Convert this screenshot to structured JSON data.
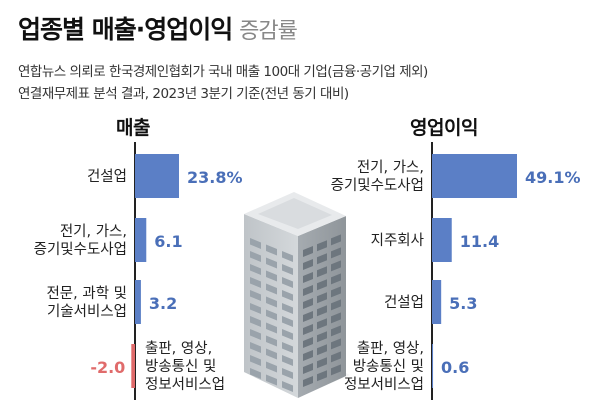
{
  "header": {
    "title_bold": "업종별 매출·영업이익",
    "title_light": "증감률",
    "subtitle_line1": "연합뉴스 의뢰로 한국경제인협회가 국내 매출 100대 기업(금융·공기업 제외)",
    "subtitle_line2": "연결재무제표 분석 결과, 2023년 3분기 기준(전년 동기 대비)"
  },
  "colors": {
    "positive": "#5b7fc6",
    "negative": "#e06b6b",
    "value_text": "#4a6fb8",
    "negative_text": "#e06b6b",
    "axis": "#222222"
  },
  "chart_data": [
    {
      "type": "bar",
      "orientation": "horizontal",
      "title": "매출",
      "categories": [
        [
          "건설업"
        ],
        [
          "전기, 가스,",
          "증기및수도사업"
        ],
        [
          "전문, 과학 및",
          "기술서비스업"
        ],
        [
          "출판, 영상,",
          "방송통신 및",
          "정보서비스업"
        ]
      ],
      "values": [
        23.8,
        6.1,
        3.2,
        -2.0
      ],
      "labels": [
        "23.8%",
        "6.1",
        "3.2",
        "-2.0"
      ]
    },
    {
      "type": "bar",
      "orientation": "horizontal",
      "title": "영업이익",
      "categories": [
        [
          "전기, 가스,",
          "증기및수도사업"
        ],
        [
          "지주회사"
        ],
        [
          "건설업"
        ],
        [
          "출판, 영상,",
          "방송통신 및",
          "정보서비스업"
        ]
      ],
      "values": [
        49.1,
        11.4,
        5.3,
        0.6
      ],
      "labels": [
        "49.1%",
        "11.4",
        "5.3",
        "0.6"
      ]
    }
  ]
}
